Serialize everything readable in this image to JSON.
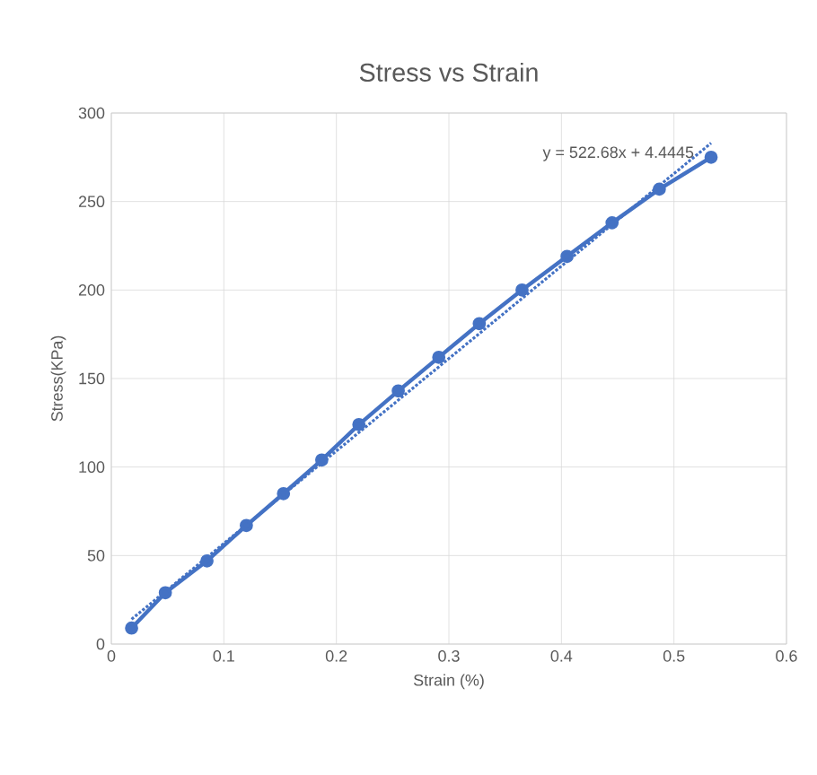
{
  "chart_data": {
    "type": "line",
    "title": "Stress vs Strain",
    "xlabel": "Strain (%)",
    "ylabel": "Stress(KPa)",
    "series": [
      {
        "color": "#4472c4",
        "marker": "circle",
        "line_style": "solid",
        "x": [
          0.018,
          0.048,
          0.085,
          0.12,
          0.153,
          0.187,
          0.22,
          0.255,
          0.291,
          0.327,
          0.365,
          0.405,
          0.445,
          0.487,
          0.533
        ],
        "values": [
          9,
          29,
          47,
          67,
          85,
          104,
          124,
          143,
          162,
          181,
          200,
          219,
          238,
          257,
          275
        ]
      },
      {
        "type": "line",
        "color": "#4472c4",
        "marker": "none",
        "line_style": "dotted",
        "x": [
          0.018,
          0.533
        ],
        "values": [
          14,
          283
        ]
      }
    ],
    "annotations": [
      {
        "text": "y = 522.68x + 4.4445",
        "x": 0.533,
        "y": 283
      }
    ],
    "xlim": [
      0,
      0.6
    ],
    "xticks": [
      0,
      0.1,
      0.2,
      0.3,
      0.4,
      0.5,
      0.6
    ],
    "ylim": [
      0,
      300
    ],
    "yticks": [
      0,
      50,
      100,
      150,
      200,
      250,
      300
    ],
    "grid": true
  }
}
